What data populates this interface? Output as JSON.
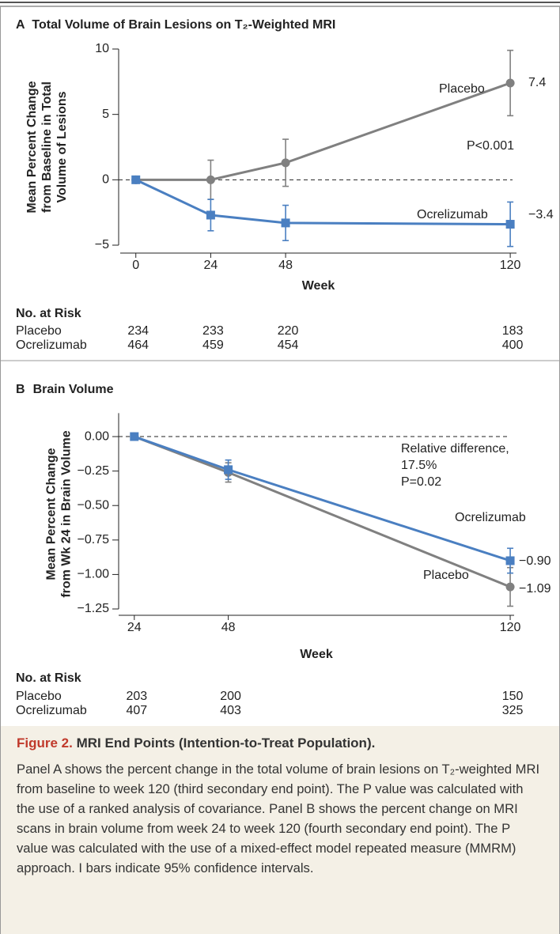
{
  "chart_data": [
    {
      "type": "line",
      "panel": "A",
      "title": "Total Volume of Brain Lesions on T₂-Weighted MRI",
      "y_label": [
        "Mean Percent Change",
        "from Baseline in Total",
        "Volume of Lesions"
      ],
      "x_label": "Week",
      "x": [
        0,
        24,
        48,
        120
      ],
      "xlim": [
        -5,
        122
      ],
      "xticks": [
        0,
        24,
        48,
        120
      ],
      "ylim": [
        -5,
        10
      ],
      "yticks": [
        10,
        5,
        0,
        {
          "value": -5,
          "label": "−5"
        }
      ],
      "reference_line": 0,
      "series": [
        {
          "name": "Placebo",
          "color": "#808080",
          "marker": "circle",
          "values": [
            0,
            0,
            1.3,
            7.4
          ],
          "errors": [
            null,
            1.5,
            1.8,
            2.5
          ],
          "value_labels": [
            null,
            null,
            null,
            "7.4"
          ]
        },
        {
          "name": "Ocrelizumab",
          "color": "#4a7fc1",
          "marker": "square",
          "values": [
            0,
            -2.7,
            -3.3,
            -3.4
          ],
          "errors": [
            null,
            1.2,
            1.35,
            1.7
          ],
          "value_labels": [
            null,
            null,
            null,
            "−3.4"
          ]
        }
      ],
      "annotations": [
        "P<0.001"
      ],
      "risk_table": {
        "title": "No. at Risk",
        "rows": [
          {
            "name": "Placebo",
            "values": [
              234,
              233,
              220,
              183
            ]
          },
          {
            "name": "Ocrelizumab",
            "values": [
              464,
              459,
              454,
              400
            ]
          }
        ]
      }
    },
    {
      "type": "line",
      "panel": "B",
      "title": "Brain Volume",
      "y_label": [
        "Mean Percent Change",
        "from Wk 24 in Brain Volume"
      ],
      "x_label": "Week",
      "x": [
        24,
        48,
        120
      ],
      "xlim": [
        20,
        121
      ],
      "xticks": [
        24,
        48,
        120
      ],
      "ylim": [
        -1.25,
        0.17
      ],
      "yticks": [
        {
          "value": 0,
          "label": "0.00"
        },
        {
          "value": -0.25,
          "label": "−0.25"
        },
        {
          "value": -0.5,
          "label": "−0.50"
        },
        {
          "value": -0.75,
          "label": "−0.75"
        },
        {
          "value": -1,
          "label": "−1.00"
        },
        {
          "value": -1.25,
          "label": "−1.25"
        }
      ],
      "reference_line": 0,
      "series": [
        {
          "name": "Placebo",
          "color": "#808080",
          "marker": "circle",
          "values": [
            0,
            -0.26,
            -1.09
          ],
          "errors": [
            null,
            0.07,
            0.14
          ],
          "value_labels": [
            null,
            null,
            "−1.09"
          ]
        },
        {
          "name": "Ocrelizumab",
          "color": "#4a7fc1",
          "marker": "square",
          "values": [
            0,
            -0.24,
            -0.9
          ],
          "errors": [
            null,
            0.07,
            0.09
          ],
          "value_labels": [
            null,
            null,
            "−0.90"
          ]
        }
      ],
      "annotations": [
        "Relative difference,",
        "17.5%",
        "P=0.02"
      ],
      "risk_table": {
        "title": "No. at Risk",
        "rows": [
          {
            "name": "Placebo",
            "values": [
              203,
              200,
              150
            ]
          },
          {
            "name": "Ocrelizumab",
            "values": [
              407,
              403,
              325
            ]
          }
        ]
      }
    }
  ],
  "caption": {
    "label": "Figure 2.",
    "title": "MRI End Points (Intention-to-Treat Population).",
    "text": "Panel A shows the percent change in the total volume of brain lesions on T₂-weighted MRI from baseline to week 120 (third secondary end point). The P value was calculated with the use of a ranked analysis of covariance. Panel B shows the percent change on MRI scans in brain volume from week 24 to week 120 (fourth secondary end point). The P value was calculated with the use of a mixed-effect model repeated measure (MMRM) approach. I bars indicate 95% confidence intervals."
  }
}
